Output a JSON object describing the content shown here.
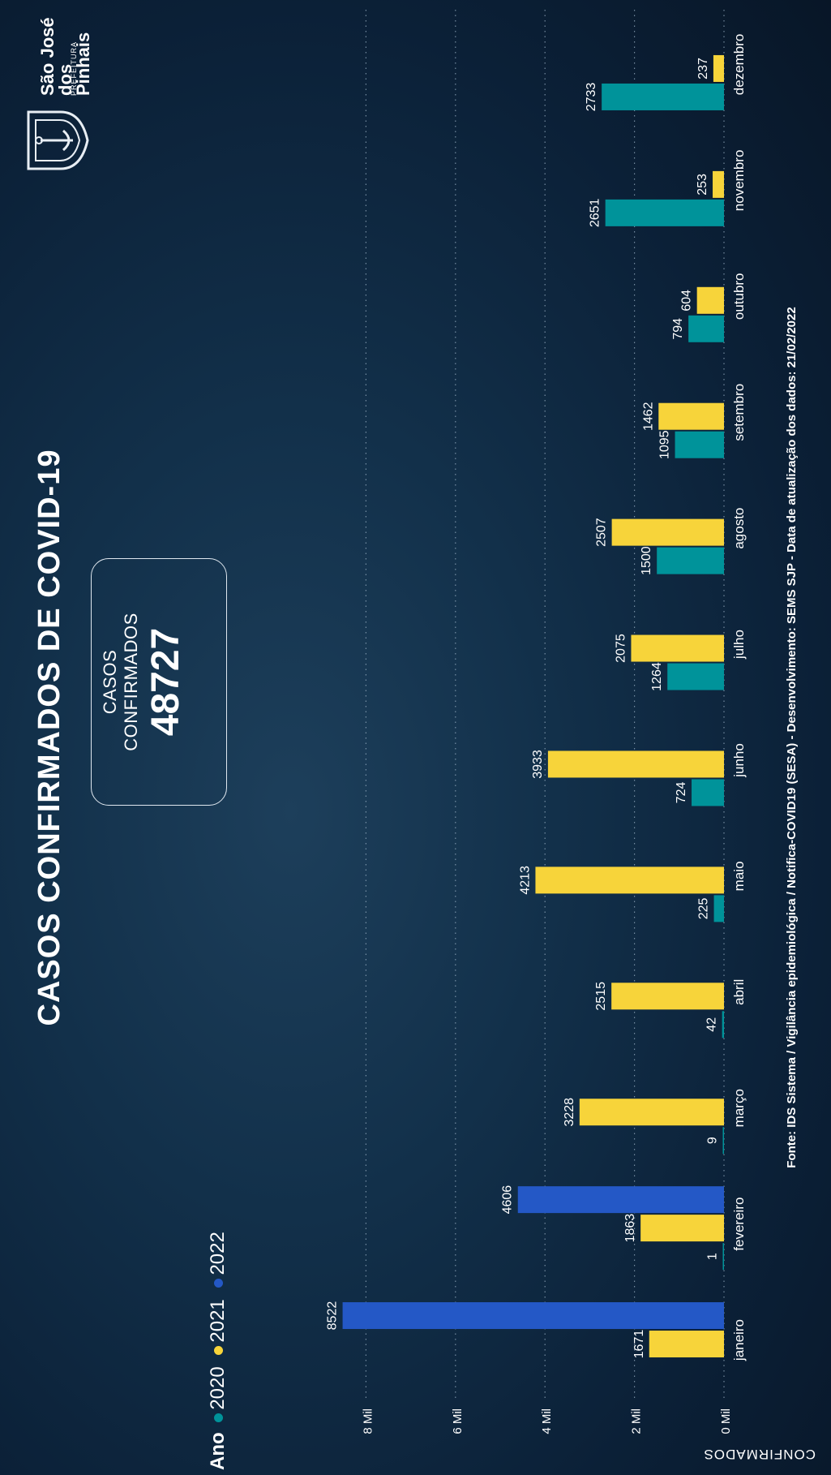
{
  "page": {
    "title": "CASOS CONFIRMADOS DE COVID-19",
    "kpi": {
      "label_line1": "CASOS",
      "label_line2": "CONFIRMADOS",
      "value": "48727"
    },
    "footer": "Fonte: IDS Sistema / Vigilância epidemiológica / Notifica-COVID19 (SESA) - Desenvolvimento: SEMS SJP - Data de atualização dos dados: 21/02/2022",
    "logo": {
      "line1": "São José",
      "line2": "dos Pinhais",
      "line3": "PREFEITURA"
    }
  },
  "chart_data": {
    "type": "bar",
    "title": "",
    "xlabel": "",
    "ylabel": "CONFIRMADOS",
    "ylim": [
      0,
      9000
    ],
    "yticks": [
      0,
      2000,
      4000,
      6000,
      8000
    ],
    "ytick_labels": [
      "0 Mil",
      "2 Mil",
      "4 Mil",
      "6 Mil",
      "8 Mil"
    ],
    "grid": true,
    "legend": {
      "title": "Ano",
      "placement": "top-left"
    },
    "categories": [
      "janeiro",
      "fevereiro",
      "março",
      "abril",
      "maio",
      "junho",
      "julho",
      "agosto",
      "setembro",
      "outubro",
      "novembro",
      "dezembro"
    ],
    "series": [
      {
        "name": "2020",
        "color": "#00939a",
        "values": [
          null,
          1,
          9,
          42,
          225,
          724,
          1264,
          1500,
          1095,
          794,
          2651,
          2733
        ]
      },
      {
        "name": "2021",
        "color": "#f7d43a",
        "values": [
          1671,
          1863,
          3228,
          2515,
          4213,
          3933,
          2075,
          2507,
          1462,
          604,
          253,
          237
        ]
      },
      {
        "name": "2022",
        "color": "#2458c6",
        "values": [
          8522,
          4606,
          null,
          null,
          null,
          null,
          null,
          null,
          null,
          null,
          null,
          null
        ]
      }
    ]
  }
}
